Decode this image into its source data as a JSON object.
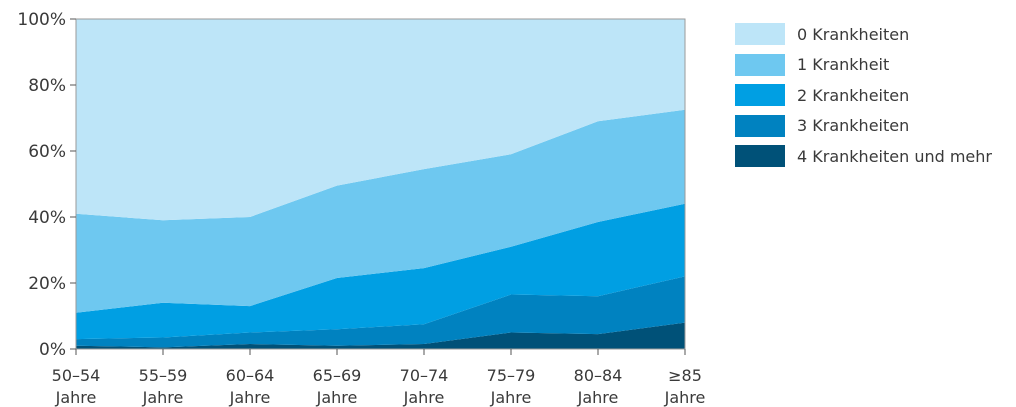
{
  "chart_data": {
    "type": "area",
    "stacked": true,
    "categories": [
      [
        "50–54",
        "Jahre"
      ],
      [
        "55–59",
        "Jahre"
      ],
      [
        "60–64",
        "Jahre"
      ],
      [
        "65–69",
        "Jahre"
      ],
      [
        "70–74",
        "Jahre"
      ],
      [
        "75–79",
        "Jahre"
      ],
      [
        "80–84",
        "Jahre"
      ],
      [
        "≥85",
        "Jahre"
      ]
    ],
    "series": [
      {
        "name": "4 Krankheiten und mehr",
        "color": "#005178",
        "values": [
          1,
          0.5,
          1.5,
          1,
          1.5,
          5,
          4.5,
          8
        ]
      },
      {
        "name": "3 Krankheiten",
        "color": "#0082c0",
        "values": [
          2,
          3,
          3.5,
          5,
          6,
          11.5,
          11.5,
          14
        ]
      },
      {
        "name": "2 Krankheiten",
        "color": "#009fe3",
        "values": [
          8,
          10.5,
          8,
          15.5,
          17,
          14.5,
          22.5,
          22
        ]
      },
      {
        "name": "1 Krankheit",
        "color": "#6ec8f0",
        "values": [
          30,
          25,
          27,
          28,
          30,
          28,
          30.5,
          28.5
        ]
      },
      {
        "name": "0 Krankheiten",
        "color": "#bde5f8",
        "values": [
          59,
          61,
          60,
          50.5,
          45.5,
          41,
          31,
          27.5
        ]
      }
    ],
    "ylim": [
      0,
      100
    ],
    "yticks": [
      "0%",
      "20%",
      "40%",
      "60%",
      "80%",
      "100%"
    ],
    "grid": false,
    "legend_position": "right"
  }
}
